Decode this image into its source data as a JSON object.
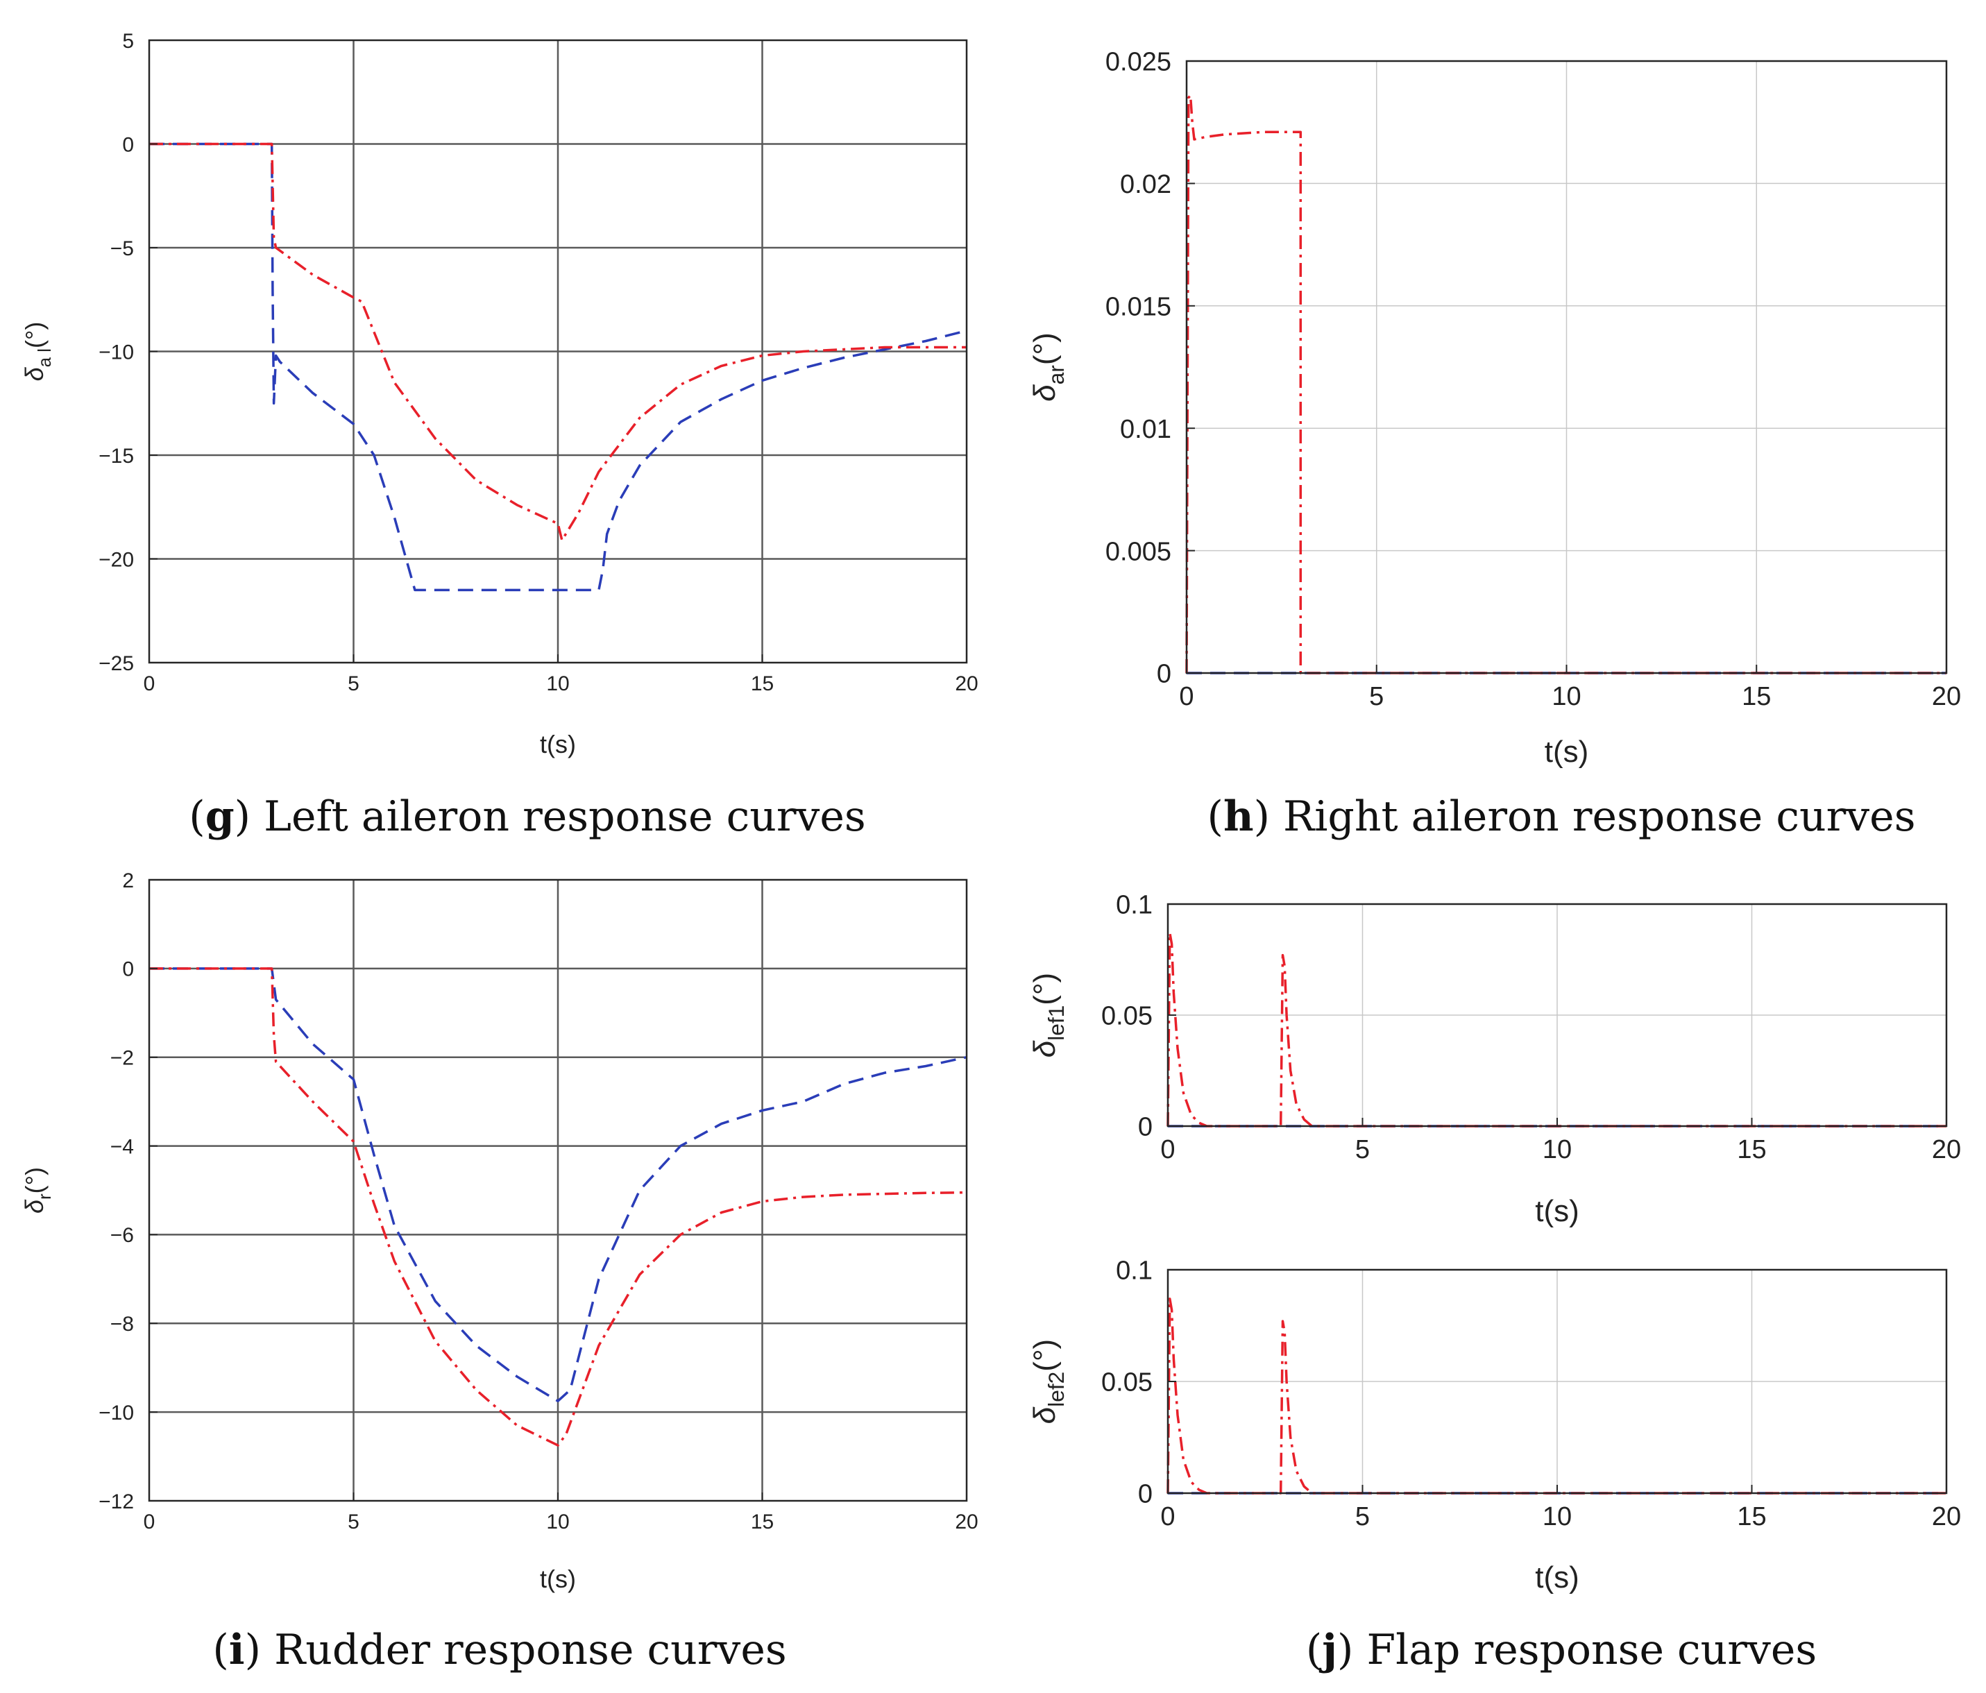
{
  "colors": {
    "blue": "#2a3db8",
    "red": "#e8202a",
    "grid_dark": "#5a5a5a",
    "grid_light": "#c8c8c8",
    "axis": "#262626"
  },
  "captions": [
    {
      "letter": "g",
      "text": " Left aileron response curves"
    },
    {
      "letter": "h",
      "text": " Right aileron response curves"
    },
    {
      "letter": "i",
      "text": " Rudder response curves"
    },
    {
      "letter": "j",
      "text": " Flap response curves"
    }
  ],
  "chart_data": [
    {
      "id": "g",
      "type": "line",
      "xlabel": "t(s)",
      "ylabel_sym": "δ",
      "ylabel_sub": "a l",
      "ylabel_unit": "(°)",
      "xlim": [
        0,
        20
      ],
      "ylim": [
        -25,
        5
      ],
      "xticks": [
        0,
        5,
        10,
        15,
        20
      ],
      "xtick_labels": [
        "0",
        "5",
        "10",
        "15",
        "20"
      ],
      "yticks": [
        5,
        0,
        -5,
        -10,
        -15,
        -20,
        -25
      ],
      "ytick_labels": [
        "5",
        "0",
        "−5",
        "−10",
        "−15",
        "−20",
        "−25"
      ],
      "series": [
        {
          "name": "blue-dashed",
          "color": "blue",
          "dash": "dash",
          "x": [
            0,
            3,
            3.02,
            3.05,
            3.1,
            3.2,
            4,
            5,
            5.5,
            6,
            6.5,
            7,
            8,
            9,
            10,
            11,
            11.1,
            11.2,
            11.5,
            12,
            13,
            14,
            15,
            16,
            17,
            18,
            19,
            20
          ],
          "y": [
            0,
            0,
            -7,
            -12.5,
            -10.2,
            -10.5,
            -12,
            -13.5,
            -15,
            -18,
            -21.5,
            -21.5,
            -21.5,
            -21.5,
            -21.5,
            -21.5,
            -20.5,
            -18.8,
            -17.2,
            -15.5,
            -13.4,
            -12.3,
            -11.4,
            -10.8,
            -10.3,
            -9.9,
            -9.5,
            -9.0
          ]
        },
        {
          "name": "red-dashdot",
          "color": "red",
          "dash": "dashdot",
          "x": [
            0,
            3,
            3.05,
            3.1,
            4,
            5,
            5.2,
            6,
            7,
            8,
            9,
            10,
            10.1,
            10.5,
            11,
            12,
            13,
            14,
            15,
            16,
            17,
            18,
            19,
            20
          ],
          "y": [
            0,
            0,
            -4.5,
            -5,
            -6.3,
            -7.4,
            -7.6,
            -11.5,
            -14.2,
            -16.2,
            -17.4,
            -18.3,
            -19.1,
            -17.8,
            -15.8,
            -13.2,
            -11.6,
            -10.7,
            -10.2,
            -10.0,
            -9.9,
            -9.8,
            -9.8,
            -9.8
          ]
        }
      ]
    },
    {
      "id": "h",
      "type": "line",
      "xlabel": "t(s)",
      "ylabel_sym": "δ",
      "ylabel_sub": "ar",
      "ylabel_unit": "(°)",
      "xlim": [
        0,
        20
      ],
      "ylim": [
        0,
        0.025
      ],
      "xticks": [
        0,
        5,
        10,
        15,
        20
      ],
      "xtick_labels": [
        "0",
        "5",
        "10",
        "15",
        "20"
      ],
      "yticks": [
        0,
        0.005,
        0.01,
        0.015,
        0.02,
        0.025
      ],
      "ytick_labels": [
        "0",
        "0.005",
        "0.01",
        "0.015",
        "0.02",
        "0.025"
      ],
      "series": [
        {
          "name": "blue-dashed",
          "color": "blue",
          "dash": "dash",
          "x": [
            0,
            20
          ],
          "y": [
            0,
            0
          ]
        },
        {
          "name": "red-dashdot",
          "color": "red",
          "dash": "dashdot",
          "x": [
            0,
            0.05,
            0.1,
            0.15,
            0.2,
            0.5,
            1,
            2,
            3,
            3.001,
            3.1,
            20
          ],
          "y": [
            0,
            0.0235,
            0.0236,
            0.0225,
            0.0218,
            0.0219,
            0.022,
            0.0221,
            0.0221,
            0,
            0,
            0
          ]
        }
      ]
    },
    {
      "id": "i",
      "type": "line",
      "xlabel": "t(s)",
      "ylabel_sym": "δ",
      "ylabel_sub": "r",
      "ylabel_unit": "(°)",
      "xlim": [
        0,
        20
      ],
      "ylim": [
        -12,
        2
      ],
      "xticks": [
        0,
        5,
        10,
        15,
        20
      ],
      "xtick_labels": [
        "0",
        "5",
        "10",
        "15",
        "20"
      ],
      "yticks": [
        2,
        0,
        -2,
        -4,
        -6,
        -8,
        -10,
        -12
      ],
      "ytick_labels": [
        "2",
        "0",
        "−2",
        "−4",
        "−6",
        "−8",
        "−10",
        "−12"
      ],
      "series": [
        {
          "name": "blue-dashed",
          "color": "blue",
          "dash": "dash",
          "x": [
            0,
            3,
            3.1,
            4,
            5,
            5.5,
            6,
            7,
            8,
            9,
            10,
            10.3,
            11,
            12,
            13,
            14,
            15,
            16,
            17,
            18,
            19,
            20
          ],
          "y": [
            0,
            0,
            -0.7,
            -1.7,
            -2.5,
            -4.2,
            -5.8,
            -7.5,
            -8.5,
            -9.2,
            -9.75,
            -9.5,
            -7.0,
            -5.0,
            -4.0,
            -3.5,
            -3.2,
            -3.0,
            -2.6,
            -2.35,
            -2.2,
            -2.0
          ]
        },
        {
          "name": "red-dashdot",
          "color": "red",
          "dash": "dashdot",
          "x": [
            0,
            3,
            3.05,
            3.1,
            4,
            5,
            5.5,
            6,
            7,
            8,
            9,
            10,
            10.2,
            11,
            12,
            13,
            14,
            15,
            16,
            17,
            18,
            19,
            20
          ],
          "y": [
            0,
            0,
            -1.5,
            -2.1,
            -3.0,
            -3.9,
            -5.3,
            -6.6,
            -8.4,
            -9.5,
            -10.3,
            -10.75,
            -10.5,
            -8.5,
            -6.9,
            -6.0,
            -5.5,
            -5.25,
            -5.15,
            -5.1,
            -5.08,
            -5.06,
            -5.05
          ]
        }
      ]
    },
    {
      "id": "j1",
      "type": "line",
      "xlabel": "t(s)",
      "ylabel_sym": "δ",
      "ylabel_sub": "lef1",
      "ylabel_unit": "(°)",
      "xlim": [
        0,
        20
      ],
      "ylim": [
        0,
        0.1
      ],
      "xticks": [
        0,
        5,
        10,
        15,
        20
      ],
      "xtick_labels": [
        "0",
        "5",
        "10",
        "15",
        "20"
      ],
      "yticks": [
        0,
        0.05,
        0.1
      ],
      "ytick_labels": [
        "0",
        "0.05",
        "0.1"
      ],
      "series": [
        {
          "name": "blue-dashed",
          "color": "blue",
          "dash": "dash",
          "x": [
            0,
            20
          ],
          "y": [
            0,
            0
          ]
        },
        {
          "name": "red-dashdot",
          "color": "red",
          "dash": "dashdot",
          "x": [
            0,
            0.05,
            0.1,
            0.15,
            0.25,
            0.4,
            0.6,
            0.8,
            1.0,
            2.9,
            2.95,
            3.0,
            3.05,
            3.15,
            3.3,
            3.5,
            3.7,
            20
          ],
          "y": [
            0,
            0.087,
            0.082,
            0.06,
            0.035,
            0.015,
            0.005,
            0.0015,
            0,
            0,
            0.077,
            0.072,
            0.05,
            0.025,
            0.01,
            0.003,
            0,
            0
          ]
        }
      ]
    },
    {
      "id": "j2",
      "type": "line",
      "xlabel": "t(s)",
      "ylabel_sym": "δ",
      "ylabel_sub": "lef2",
      "ylabel_unit": "(°)",
      "xlim": [
        0,
        20
      ],
      "ylim": [
        0,
        0.1
      ],
      "xticks": [
        0,
        5,
        10,
        15,
        20
      ],
      "xtick_labels": [
        "0",
        "5",
        "10",
        "15",
        "20"
      ],
      "yticks": [
        0,
        0.05,
        0.1
      ],
      "ytick_labels": [
        "0",
        "0.05",
        "0.1"
      ],
      "series": [
        {
          "name": "blue-dashed",
          "color": "blue",
          "dash": "dash",
          "x": [
            0,
            20
          ],
          "y": [
            0,
            0
          ]
        },
        {
          "name": "red-dashdot",
          "color": "red",
          "dash": "dashdot",
          "x": [
            0,
            0.05,
            0.1,
            0.15,
            0.25,
            0.4,
            0.6,
            0.8,
            1.0,
            2.9,
            2.95,
            3.0,
            3.05,
            3.15,
            3.3,
            3.5,
            3.7,
            20
          ],
          "y": [
            0,
            0.087,
            0.082,
            0.06,
            0.035,
            0.015,
            0.005,
            0.0015,
            0,
            0,
            0.077,
            0.072,
            0.05,
            0.025,
            0.01,
            0.003,
            0,
            0
          ]
        }
      ]
    }
  ]
}
